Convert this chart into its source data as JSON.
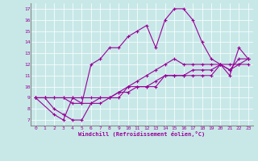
{
  "xlabel": "Windchill (Refroidissement éolien,°C)",
  "bg_color": "#c8e8e8",
  "line_color": "#990099",
  "xlim": [
    -0.5,
    23.5
  ],
  "ylim": [
    6.5,
    17.5
  ],
  "yticks": [
    7,
    8,
    9,
    10,
    11,
    12,
    13,
    14,
    15,
    16,
    17
  ],
  "xticks": [
    0,
    1,
    2,
    3,
    4,
    5,
    6,
    7,
    8,
    9,
    10,
    11,
    12,
    13,
    14,
    15,
    16,
    17,
    18,
    19,
    20,
    21,
    22,
    23
  ],
  "line1_x": [
    0,
    1,
    2,
    3,
    4,
    5,
    6,
    7,
    8,
    9,
    10,
    11,
    12,
    13,
    14,
    15,
    16,
    17,
    18,
    19,
    20,
    21,
    22,
    23
  ],
  "line1_y": [
    9,
    9,
    9,
    9,
    9,
    9,
    9,
    9,
    9,
    9,
    10,
    10,
    10,
    10,
    11,
    11,
    11,
    11,
    11,
    11,
    12,
    12,
    12,
    12
  ],
  "line2_x": [
    0,
    1,
    2,
    3,
    4,
    5,
    6,
    7,
    8,
    9,
    10,
    11,
    12,
    13,
    14,
    15,
    16,
    17,
    18,
    19,
    20,
    21,
    22,
    23
  ],
  "line2_y": [
    9,
    9,
    9,
    9,
    8.5,
    8.5,
    8.5,
    9,
    9,
    9.5,
    9.5,
    10,
    10,
    10.5,
    11,
    11,
    11,
    11.5,
    11.5,
    11.5,
    12,
    11.5,
    12,
    12.5
  ],
  "line3_x": [
    0,
    1,
    2,
    3,
    4,
    5,
    6,
    7,
    8,
    9,
    10,
    11,
    12,
    13,
    14,
    15,
    16,
    17,
    18,
    19,
    20,
    21,
    22,
    23
  ],
  "line3_y": [
    9,
    9,
    8,
    7.5,
    7,
    7,
    8.5,
    8.5,
    9,
    9.5,
    10,
    10.5,
    11,
    11.5,
    12,
    12.5,
    12,
    12,
    12,
    12,
    12,
    11.5,
    12.5,
    12.5
  ],
  "line4_x": [
    0,
    2,
    3,
    4,
    5,
    6,
    7,
    8,
    9,
    10,
    11,
    12,
    13,
    14,
    15,
    16,
    17,
    18,
    19,
    20,
    21,
    22,
    23
  ],
  "line4_y": [
    9,
    7.5,
    7,
    9,
    8.5,
    12,
    12.5,
    13.5,
    13.5,
    14.5,
    15,
    15.5,
    13.5,
    16,
    17,
    17,
    16,
    14,
    12.5,
    12,
    11,
    13.5,
    12.5
  ]
}
